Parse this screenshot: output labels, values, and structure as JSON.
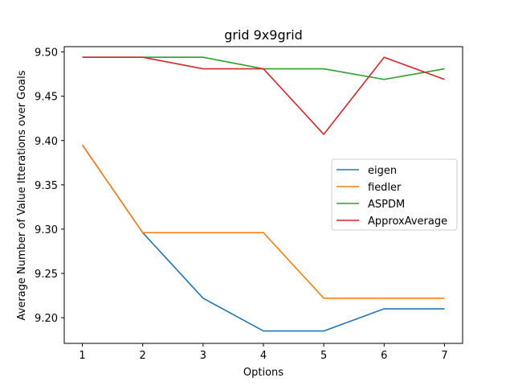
{
  "chart_data": {
    "type": "line",
    "title": "grid  9x9grid",
    "xlabel": "Options",
    "ylabel": "Average Number of Value Itterations over Goals",
    "x": [
      1,
      2,
      3,
      4,
      5,
      6,
      7
    ],
    "xlim": [
      0.7,
      7.3
    ],
    "ylim": [
      9.171,
      9.506
    ],
    "xticks": [
      "1",
      "2",
      "3",
      "4",
      "5",
      "6",
      "7"
    ],
    "yticks": [
      "9.20",
      "9.25",
      "9.30",
      "9.35",
      "9.40",
      "9.45",
      "9.50"
    ],
    "ytick_values": [
      9.2,
      9.25,
      9.3,
      9.35,
      9.4,
      9.45,
      9.5
    ],
    "grid": false,
    "legend_position": "center-right",
    "series": [
      {
        "name": "eigen",
        "color": "#1f77b4",
        "values": [
          9.395,
          9.296,
          9.222,
          9.185,
          9.185,
          9.21,
          9.21
        ]
      },
      {
        "name": "fiedler",
        "color": "#ff7f0e",
        "values": [
          9.395,
          9.296,
          9.296,
          9.296,
          9.222,
          9.222,
          9.222
        ]
      },
      {
        "name": "ASPDM",
        "color": "#2ca02c",
        "values": [
          9.494,
          9.494,
          9.494,
          9.481,
          9.481,
          9.469,
          9.481
        ]
      },
      {
        "name": "ApproxAverage",
        "color": "#d62728",
        "values": [
          9.494,
          9.494,
          9.481,
          9.481,
          9.407,
          9.494,
          9.469
        ]
      }
    ]
  }
}
